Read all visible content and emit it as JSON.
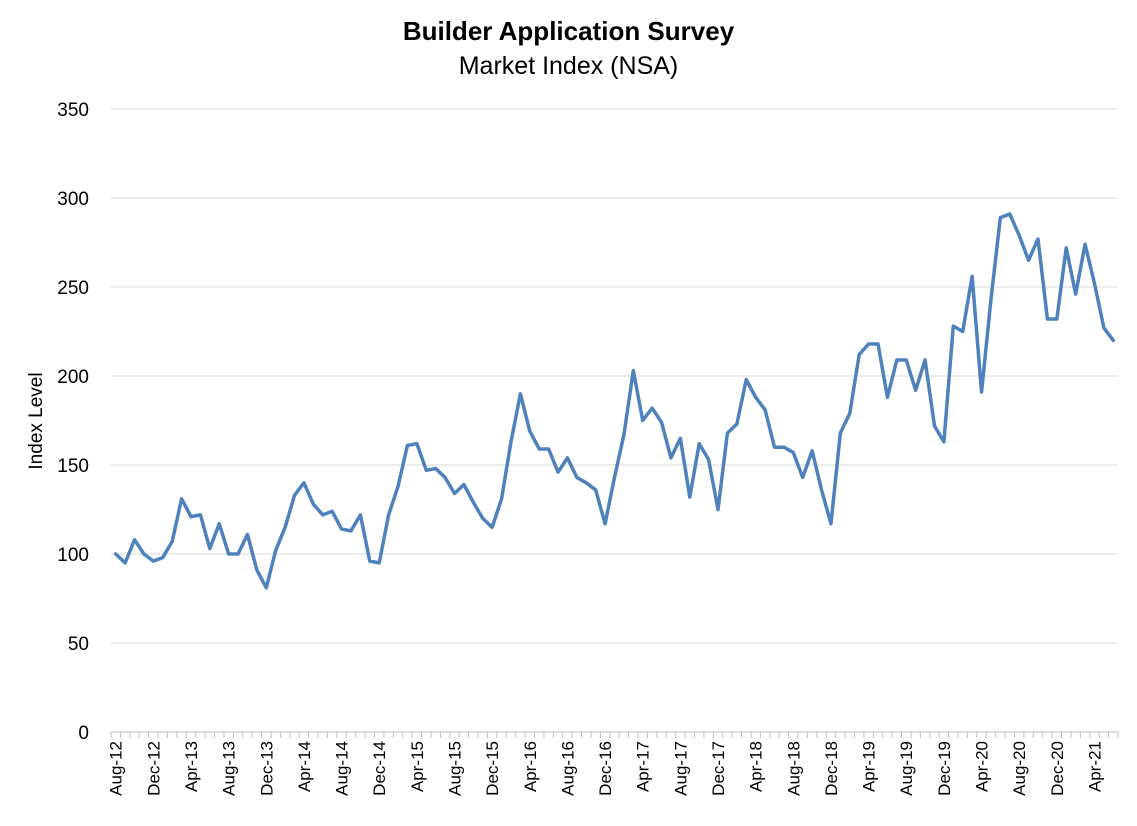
{
  "chart_data": {
    "type": "line",
    "title": "Builder Application Survey",
    "subtitle": "Market Index (NSA)",
    "xlabel": "",
    "ylabel": "Index Level",
    "ylim": [
      0,
      350
    ],
    "yticks": [
      0,
      50,
      100,
      150,
      200,
      250,
      300,
      350
    ],
    "grid": true,
    "legend": "none",
    "line_color": "#4f81bd",
    "x": [
      "Aug-12",
      "Sep-12",
      "Oct-12",
      "Nov-12",
      "Dec-12",
      "Jan-13",
      "Feb-13",
      "Mar-13",
      "Apr-13",
      "May-13",
      "Jun-13",
      "Jul-13",
      "Aug-13",
      "Sep-13",
      "Oct-13",
      "Nov-13",
      "Dec-13",
      "Jan-14",
      "Feb-14",
      "Mar-14",
      "Apr-14",
      "May-14",
      "Jun-14",
      "Jul-14",
      "Aug-14",
      "Sep-14",
      "Oct-14",
      "Nov-14",
      "Dec-14",
      "Jan-15",
      "Feb-15",
      "Mar-15",
      "Apr-15",
      "May-15",
      "Jun-15",
      "Jul-15",
      "Aug-15",
      "Sep-15",
      "Oct-15",
      "Nov-15",
      "Dec-15",
      "Jan-16",
      "Feb-16",
      "Mar-16",
      "Apr-16",
      "May-16",
      "Jun-16",
      "Jul-16",
      "Aug-16",
      "Sep-16",
      "Oct-16",
      "Nov-16",
      "Dec-16",
      "Jan-17",
      "Feb-17",
      "Mar-17",
      "Apr-17",
      "May-17",
      "Jun-17",
      "Jul-17",
      "Aug-17",
      "Sep-17",
      "Oct-17",
      "Nov-17",
      "Dec-17",
      "Jan-18",
      "Feb-18",
      "Mar-18",
      "Apr-18",
      "May-18",
      "Jun-18",
      "Jul-18",
      "Aug-18",
      "Sep-18",
      "Oct-18",
      "Nov-18",
      "Dec-18",
      "Jan-19",
      "Feb-19",
      "Mar-19",
      "Apr-19",
      "May-19",
      "Jun-19",
      "Jul-19",
      "Aug-19",
      "Sep-19",
      "Oct-19",
      "Nov-19",
      "Dec-19",
      "Jan-20",
      "Feb-20",
      "Mar-20",
      "Apr-20",
      "May-20",
      "Jun-20",
      "Jul-20",
      "Aug-20",
      "Sep-20",
      "Oct-20",
      "Nov-20",
      "Dec-20",
      "Jan-21",
      "Feb-21",
      "Mar-21",
      "Apr-21",
      "May-21",
      "Jun-21"
    ],
    "x_tick_labels": [
      "Aug-12",
      "Dec-12",
      "Apr-13",
      "Aug-13",
      "Dec-13",
      "Apr-14",
      "Aug-14",
      "Dec-14",
      "Apr-15",
      "Aug-15",
      "Dec-15",
      "Apr-16",
      "Aug-16",
      "Dec-16",
      "Apr-17",
      "Aug-17",
      "Dec-17",
      "Apr-18",
      "Aug-18",
      "Dec-18",
      "Apr-19",
      "Aug-19",
      "Dec-19",
      "Apr-20",
      "Aug-20",
      "Dec-20",
      "Apr-21"
    ],
    "series": [
      {
        "values": [
          100,
          95,
          108,
          100,
          96,
          98,
          107,
          131,
          121,
          122,
          103,
          117,
          100,
          100,
          111,
          91,
          81,
          102,
          115,
          133,
          140,
          128,
          122,
          124,
          114,
          113,
          122,
          96,
          95,
          122,
          138,
          161,
          162,
          147,
          148,
          143,
          134,
          139,
          129,
          120,
          115,
          131,
          163,
          190,
          169,
          159,
          159,
          146,
          154,
          143,
          140,
          136,
          117,
          143,
          167,
          203,
          175,
          182,
          174,
          154,
          165,
          132,
          162,
          153,
          125,
          168,
          173,
          198,
          188,
          181,
          160,
          160,
          157,
          143,
          158,
          136,
          117,
          168,
          179,
          212,
          218,
          218,
          188,
          209,
          209,
          192,
          209,
          172,
          163,
          228,
          225,
          256,
          191,
          243,
          289,
          291,
          279,
          265,
          277,
          232,
          232,
          272,
          246,
          274,
          252,
          227,
          220
        ]
      }
    ]
  }
}
